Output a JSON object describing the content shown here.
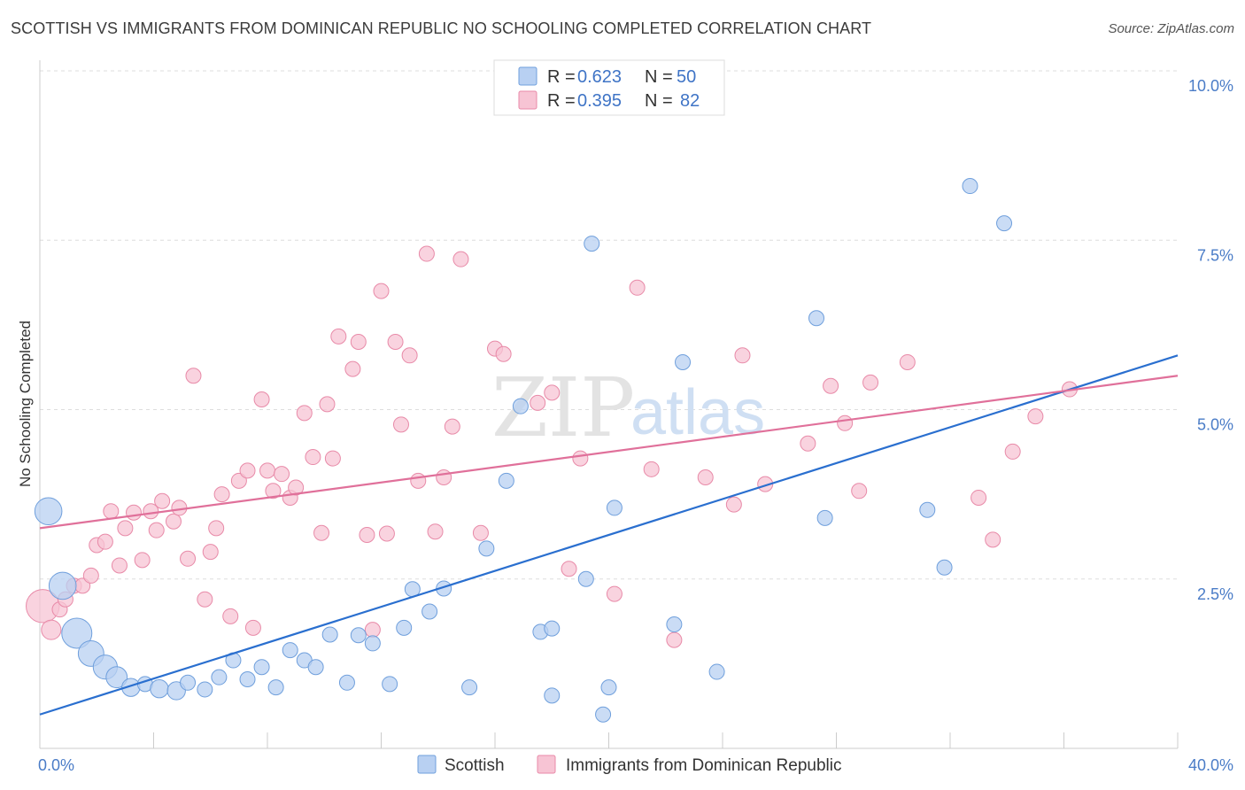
{
  "title": "SCOTTISH VS IMMIGRANTS FROM DOMINICAN REPUBLIC NO SCHOOLING COMPLETED CORRELATION CHART",
  "source": "Source: ZipAtlas.com",
  "watermark": {
    "zip": "ZIP",
    "atlas": "atlas"
  },
  "colors": {
    "blue_fill": "#b8d0f2",
    "blue_stroke": "#6f9fdc",
    "blue_line": "#2a6fcf",
    "pink_fill": "#f7c4d4",
    "pink_stroke": "#e88aa8",
    "pink_line": "#e0709a",
    "grid": "#dddddd",
    "axis_label": "#4a7cc7"
  },
  "legend": {
    "rows": [
      {
        "r_label": "R = ",
        "r_value": "0.623",
        "n_label": "N = ",
        "n_value": "50"
      },
      {
        "r_label": "R = ",
        "r_value": "0.395",
        "n_label": "N = ",
        "n_value": "82"
      }
    ]
  },
  "bottom_legend": [
    "Scottish",
    "Immigrants from Dominican Republic"
  ],
  "chart_data": {
    "type": "scatter",
    "title": "SCOTTISH VS IMMIGRANTS FROM DOMINICAN REPUBLIC NO SCHOOLING COMPLETED CORRELATION CHART",
    "xlabel": "",
    "ylabel": "No Schooling Completed",
    "xlim": [
      0,
      40
    ],
    "ylim": [
      0,
      10.5
    ],
    "x_tick_labels": [
      {
        "value": 0,
        "label": "0.0%"
      },
      {
        "value": 40,
        "label": "40.0%"
      }
    ],
    "y_tick_labels": [
      {
        "value": 2.5,
        "label": "2.5%"
      },
      {
        "value": 5.0,
        "label": "5.0%"
      },
      {
        "value": 7.5,
        "label": "7.5%"
      },
      {
        "value": 10.0,
        "label": "10.0%"
      }
    ],
    "series": [
      {
        "name": "Scottish",
        "R": 0.623,
        "N": 50,
        "trend": {
          "x": [
            0,
            40
          ],
          "y": [
            0.5,
            5.8
          ]
        },
        "points": [
          {
            "x": 0.3,
            "y": 3.5,
            "s": 1.8
          },
          {
            "x": 0.8,
            "y": 2.4,
            "s": 1.8
          },
          {
            "x": 1.3,
            "y": 1.7,
            "s": 2.0
          },
          {
            "x": 1.8,
            "y": 1.4,
            "s": 1.7
          },
          {
            "x": 2.3,
            "y": 1.2,
            "s": 1.6
          },
          {
            "x": 2.7,
            "y": 1.05,
            "s": 1.4
          },
          {
            "x": 3.2,
            "y": 0.9,
            "s": 1.2
          },
          {
            "x": 3.7,
            "y": 0.95,
            "s": 1.0
          },
          {
            "x": 4.2,
            "y": 0.88,
            "s": 1.2
          },
          {
            "x": 4.8,
            "y": 0.85,
            "s": 1.2
          },
          {
            "x": 5.2,
            "y": 0.97,
            "s": 1.0
          },
          {
            "x": 5.8,
            "y": 0.87,
            "s": 1.0
          },
          {
            "x": 6.3,
            "y": 1.05,
            "s": 1.0
          },
          {
            "x": 6.8,
            "y": 1.3,
            "s": 1.0
          },
          {
            "x": 7.3,
            "y": 1.02,
            "s": 1.0
          },
          {
            "x": 7.8,
            "y": 1.2,
            "s": 1.0
          },
          {
            "x": 8.3,
            "y": 0.9,
            "s": 1.0
          },
          {
            "x": 8.8,
            "y": 1.45,
            "s": 1.0
          },
          {
            "x": 9.3,
            "y": 1.3,
            "s": 1.0
          },
          {
            "x": 9.7,
            "y": 1.2,
            "s": 1.0
          },
          {
            "x": 10.2,
            "y": 1.68,
            "s": 1.0
          },
          {
            "x": 10.8,
            "y": 0.97,
            "s": 1.0
          },
          {
            "x": 11.2,
            "y": 1.67,
            "s": 1.0
          },
          {
            "x": 11.7,
            "y": 1.55,
            "s": 1.0
          },
          {
            "x": 12.3,
            "y": 0.95,
            "s": 1.0
          },
          {
            "x": 12.8,
            "y": 1.78,
            "s": 1.0
          },
          {
            "x": 13.1,
            "y": 2.35,
            "s": 1.0
          },
          {
            "x": 13.7,
            "y": 2.02,
            "s": 1.0
          },
          {
            "x": 14.2,
            "y": 2.36,
            "s": 1.0
          },
          {
            "x": 15.1,
            "y": 0.9,
            "s": 1.0
          },
          {
            "x": 15.7,
            "y": 2.95,
            "s": 1.0
          },
          {
            "x": 16.4,
            "y": 3.95,
            "s": 1.0
          },
          {
            "x": 16.9,
            "y": 5.05,
            "s": 1.0
          },
          {
            "x": 17.6,
            "y": 1.72,
            "s": 1.0
          },
          {
            "x": 18.0,
            "y": 1.77,
            "s": 1.0
          },
          {
            "x": 18.0,
            "y": 0.78,
            "s": 1.0
          },
          {
            "x": 19.2,
            "y": 2.5,
            "s": 1.0
          },
          {
            "x": 19.8,
            "y": 0.5,
            "s": 1.0
          },
          {
            "x": 19.4,
            "y": 7.45,
            "s": 1.0
          },
          {
            "x": 20.0,
            "y": 0.9,
            "s": 1.0
          },
          {
            "x": 20.2,
            "y": 3.55,
            "s": 1.0
          },
          {
            "x": 22.3,
            "y": 1.83,
            "s": 1.0
          },
          {
            "x": 22.6,
            "y": 5.7,
            "s": 1.0
          },
          {
            "x": 23.8,
            "y": 1.13,
            "s": 1.0
          },
          {
            "x": 27.3,
            "y": 6.35,
            "s": 1.0
          },
          {
            "x": 27.6,
            "y": 3.4,
            "s": 1.0
          },
          {
            "x": 31.2,
            "y": 3.52,
            "s": 1.0
          },
          {
            "x": 31.8,
            "y": 2.67,
            "s": 1.0
          },
          {
            "x": 32.7,
            "y": 8.3,
            "s": 1.0
          },
          {
            "x": 33.9,
            "y": 7.75,
            "s": 1.0
          }
        ]
      },
      {
        "name": "Immigrants from Dominican Republic",
        "R": 0.395,
        "N": 82,
        "trend": {
          "x": [
            0,
            40
          ],
          "y": [
            3.25,
            5.5
          ]
        },
        "points": [
          {
            "x": 0.1,
            "y": 2.1,
            "s": 2.2
          },
          {
            "x": 0.4,
            "y": 1.75,
            "s": 1.3
          },
          {
            "x": 0.7,
            "y": 2.05,
            "s": 1.0
          },
          {
            "x": 0.9,
            "y": 2.2,
            "s": 1.0
          },
          {
            "x": 1.2,
            "y": 2.4,
            "s": 1.0
          },
          {
            "x": 1.5,
            "y": 2.4,
            "s": 1.0
          },
          {
            "x": 1.8,
            "y": 2.55,
            "s": 1.0
          },
          {
            "x": 2.0,
            "y": 3.0,
            "s": 1.0
          },
          {
            "x": 2.3,
            "y": 3.05,
            "s": 1.0
          },
          {
            "x": 2.5,
            "y": 3.5,
            "s": 1.0
          },
          {
            "x": 2.8,
            "y": 2.7,
            "s": 1.0
          },
          {
            "x": 3.0,
            "y": 3.25,
            "s": 1.0
          },
          {
            "x": 3.3,
            "y": 3.48,
            "s": 1.0
          },
          {
            "x": 3.6,
            "y": 2.78,
            "s": 1.0
          },
          {
            "x": 3.9,
            "y": 3.5,
            "s": 1.0
          },
          {
            "x": 4.1,
            "y": 3.22,
            "s": 1.0
          },
          {
            "x": 4.3,
            "y": 3.65,
            "s": 1.0
          },
          {
            "x": 4.7,
            "y": 3.35,
            "s": 1.0
          },
          {
            "x": 4.9,
            "y": 3.55,
            "s": 1.0
          },
          {
            "x": 5.2,
            "y": 2.8,
            "s": 1.0
          },
          {
            "x": 5.4,
            "y": 5.5,
            "s": 1.0
          },
          {
            "x": 5.8,
            "y": 2.2,
            "s": 1.0
          },
          {
            "x": 6.0,
            "y": 2.9,
            "s": 1.0
          },
          {
            "x": 6.2,
            "y": 3.25,
            "s": 1.0
          },
          {
            "x": 6.4,
            "y": 3.75,
            "s": 1.0
          },
          {
            "x": 6.7,
            "y": 1.95,
            "s": 1.0
          },
          {
            "x": 7.0,
            "y": 3.95,
            "s": 1.0
          },
          {
            "x": 7.3,
            "y": 4.1,
            "s": 1.0
          },
          {
            "x": 7.5,
            "y": 1.78,
            "s": 1.0
          },
          {
            "x": 7.8,
            "y": 5.15,
            "s": 1.0
          },
          {
            "x": 8.0,
            "y": 4.1,
            "s": 1.0
          },
          {
            "x": 8.2,
            "y": 3.8,
            "s": 1.0
          },
          {
            "x": 8.5,
            "y": 4.05,
            "s": 1.0
          },
          {
            "x": 8.8,
            "y": 3.7,
            "s": 1.0
          },
          {
            "x": 9.0,
            "y": 3.85,
            "s": 1.0
          },
          {
            "x": 9.3,
            "y": 4.95,
            "s": 1.0
          },
          {
            "x": 9.6,
            "y": 4.3,
            "s": 1.0
          },
          {
            "x": 9.9,
            "y": 3.18,
            "s": 1.0
          },
          {
            "x": 10.1,
            "y": 5.08,
            "s": 1.0
          },
          {
            "x": 10.3,
            "y": 4.28,
            "s": 1.0
          },
          {
            "x": 10.5,
            "y": 6.08,
            "s": 1.0
          },
          {
            "x": 11.0,
            "y": 5.6,
            "s": 1.0
          },
          {
            "x": 11.2,
            "y": 6.0,
            "s": 1.0
          },
          {
            "x": 11.5,
            "y": 3.15,
            "s": 1.0
          },
          {
            "x": 11.7,
            "y": 1.75,
            "s": 1.0
          },
          {
            "x": 12.0,
            "y": 6.75,
            "s": 1.0
          },
          {
            "x": 12.2,
            "y": 3.17,
            "s": 1.0
          },
          {
            "x": 12.5,
            "y": 6.0,
            "s": 1.0
          },
          {
            "x": 12.7,
            "y": 4.78,
            "s": 1.0
          },
          {
            "x": 13.0,
            "y": 5.8,
            "s": 1.0
          },
          {
            "x": 13.3,
            "y": 3.95,
            "s": 1.0
          },
          {
            "x": 13.6,
            "y": 7.3,
            "s": 1.0
          },
          {
            "x": 13.9,
            "y": 3.2,
            "s": 1.0
          },
          {
            "x": 14.2,
            "y": 4.0,
            "s": 1.0
          },
          {
            "x": 14.5,
            "y": 4.75,
            "s": 1.0
          },
          {
            "x": 14.8,
            "y": 7.22,
            "s": 1.0
          },
          {
            "x": 15.5,
            "y": 3.18,
            "s": 1.0
          },
          {
            "x": 16.0,
            "y": 5.9,
            "s": 1.0
          },
          {
            "x": 16.3,
            "y": 5.82,
            "s": 1.0
          },
          {
            "x": 17.5,
            "y": 5.1,
            "s": 1.0
          },
          {
            "x": 18.0,
            "y": 5.25,
            "s": 1.0
          },
          {
            "x": 18.6,
            "y": 2.65,
            "s": 1.0
          },
          {
            "x": 19.0,
            "y": 4.28,
            "s": 1.0
          },
          {
            "x": 20.2,
            "y": 2.28,
            "s": 1.0
          },
          {
            "x": 21.0,
            "y": 6.8,
            "s": 1.0
          },
          {
            "x": 21.5,
            "y": 4.12,
            "s": 1.0
          },
          {
            "x": 22.3,
            "y": 1.6,
            "s": 1.0
          },
          {
            "x": 23.4,
            "y": 4.0,
            "s": 1.0
          },
          {
            "x": 24.4,
            "y": 3.6,
            "s": 1.0
          },
          {
            "x": 24.7,
            "y": 5.8,
            "s": 1.0
          },
          {
            "x": 25.5,
            "y": 3.9,
            "s": 1.0
          },
          {
            "x": 27.0,
            "y": 4.5,
            "s": 1.0
          },
          {
            "x": 27.8,
            "y": 5.35,
            "s": 1.0
          },
          {
            "x": 28.3,
            "y": 4.8,
            "s": 1.0
          },
          {
            "x": 28.8,
            "y": 3.8,
            "s": 1.0
          },
          {
            "x": 29.2,
            "y": 5.4,
            "s": 1.0
          },
          {
            "x": 30.5,
            "y": 5.7,
            "s": 1.0
          },
          {
            "x": 33.0,
            "y": 3.7,
            "s": 1.0
          },
          {
            "x": 33.5,
            "y": 3.08,
            "s": 1.0
          },
          {
            "x": 34.2,
            "y": 4.38,
            "s": 1.0
          },
          {
            "x": 35.0,
            "y": 4.9,
            "s": 1.0
          },
          {
            "x": 36.2,
            "y": 5.3,
            "s": 1.0
          }
        ]
      }
    ]
  }
}
